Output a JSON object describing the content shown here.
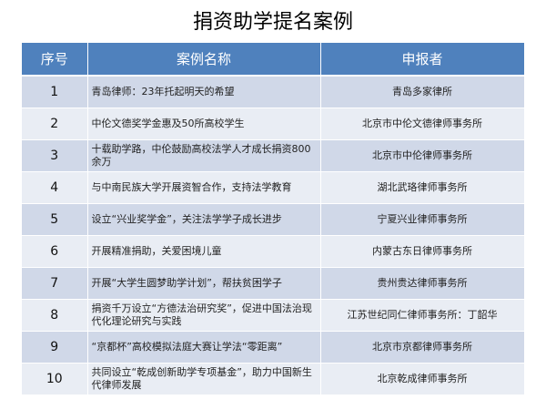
{
  "title": "捐资助学提名案例",
  "headers": {
    "num": "序号",
    "name": "案例名称",
    "org": "申报者"
  },
  "header_color": "#4f81bd",
  "rows": [
    {
      "num": "1",
      "name": "青岛律师：23年托起明天的希望",
      "org": "青岛多家律所"
    },
    {
      "num": "2",
      "name": "中伦文德奖学金惠及50所高校学生",
      "org": "北京市中伦文德律师事务所"
    },
    {
      "num": "3",
      "name": "十载助学路，中伦鼓励高校法学人才成长捐资800余万",
      "org": "北京市中伦律师事务所"
    },
    {
      "num": "4",
      "name": "与中南民族大学开展资智合作，支持法学教育",
      "org": "湖北武珞律师事务所"
    },
    {
      "num": "5",
      "name": "设立“兴业奖学金”，关注法学学子成长进步",
      "org": "宁夏兴业律师事务所"
    },
    {
      "num": "6",
      "name": "开展精准捐助，关爱困境儿童",
      "org": "内蒙古东日律师事务所"
    },
    {
      "num": "7",
      "name": "开展“大学生圆梦助学计划”，帮扶贫困学子",
      "org": "贵州贵达律师事务所"
    },
    {
      "num": "8",
      "name": "捐资千万设立“方德法治研究奖”，促进中国法治现代化理论研究与实践",
      "org": "江苏世纪同仁律师事务所：丁韶华"
    },
    {
      "num": "9",
      "name": "“京都杯”高校模拟法庭大赛让学法“零距离”",
      "org": "北京市京都律师事务所"
    },
    {
      "num": "10",
      "name": "共同设立“乾成创新助学专项基金”，助力中国新生代律师发展",
      "org": "北京乾成律师事务所"
    }
  ]
}
